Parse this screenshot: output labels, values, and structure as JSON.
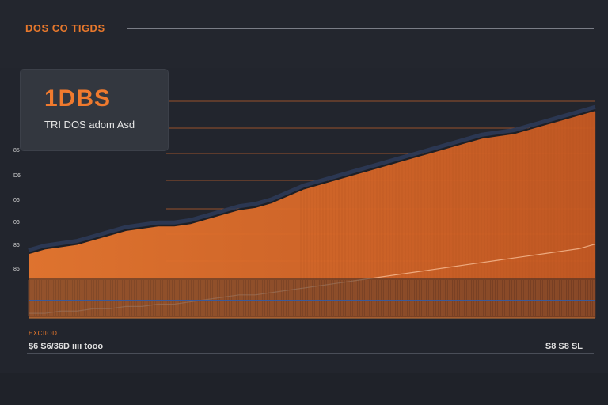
{
  "header": {
    "title": "DOS CO TIGDS"
  },
  "stat_card": {
    "value": "1DBS",
    "label": "TRI DOS  adom Asd"
  },
  "footer": {
    "heading": "EXCIIOD",
    "left_value": "$6 S6/36D ıııı tooo",
    "right_value": "S8 S8 SL"
  },
  "colors": {
    "accent": "#f07a2e",
    "area": "#e8772f",
    "background": "#22252d",
    "grid": "#c0602a",
    "navy": "#2c3a56"
  },
  "chart_data": {
    "type": "area",
    "title": "DOS CO TIGDS",
    "y_tick_labels": [
      "85",
      "D6",
      "06",
      "06",
      "86",
      "86"
    ],
    "x": [
      0,
      1,
      2,
      3,
      4,
      5,
      6,
      7,
      8,
      9,
      10,
      11,
      12,
      13,
      14,
      15,
      16,
      17,
      18,
      19,
      20,
      21,
      22,
      23,
      24,
      25,
      26,
      27,
      28,
      29,
      30,
      31,
      32,
      33,
      34,
      35
    ],
    "series": [
      {
        "values": [
          28,
          30,
          31,
          32,
          34,
          36,
          38,
          39,
          40,
          40,
          41,
          43,
          45,
          47,
          48,
          50,
          53,
          56,
          58,
          60,
          62,
          64,
          66,
          68,
          70,
          72,
          74,
          76,
          78,
          79,
          80,
          82,
          84,
          86,
          88,
          90
        ]
      },
      {
        "values": [
          2,
          2,
          3,
          3,
          4,
          4,
          5,
          5,
          6,
          6,
          7,
          8,
          9,
          10,
          10,
          11,
          12,
          13,
          14,
          15,
          16,
          17,
          18,
          19,
          20,
          21,
          22,
          23,
          24,
          25,
          26,
          27,
          28,
          29,
          30,
          32
        ]
      }
    ],
    "ylim": [
      0,
      100
    ],
    "grid": true
  }
}
